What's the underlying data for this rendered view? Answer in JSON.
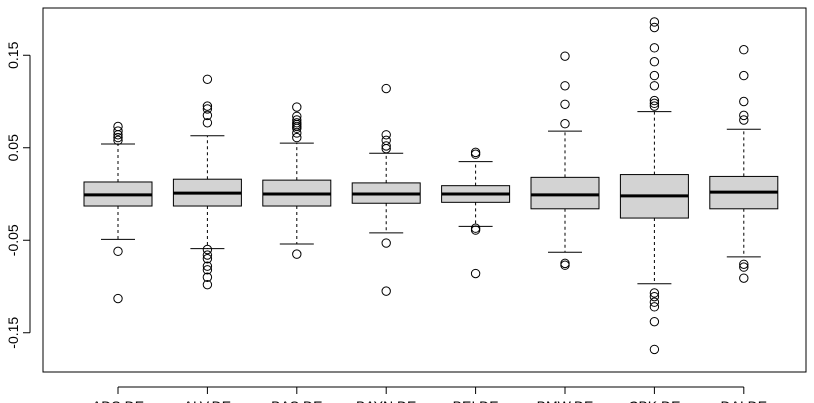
{
  "chart_data": {
    "type": "boxplot",
    "ylim": [
      -0.18,
      0.19
    ],
    "y_ticks": [
      -0.15,
      -0.05,
      0.05,
      0.15
    ],
    "y_tick_labels": [
      "-0.15",
      "-0.05",
      "0.05",
      "0.15"
    ],
    "grid": false,
    "categories": [
      "ADS.DE",
      "ALV.DE",
      "BAS.DE",
      "BAYN.DE",
      "BEI.DE",
      "BMW.DE",
      "CBK.DE",
      "DAI.DE"
    ],
    "boxes": [
      {
        "name": "ADS.DE",
        "whisker_low": -0.049,
        "q1": -0.013,
        "median": -0.001,
        "q3": 0.013,
        "whisker_high": 0.054,
        "outliers": [
          0.073,
          0.068,
          0.064,
          0.061,
          0.058,
          -0.062,
          -0.113
        ]
      },
      {
        "name": "ALV.DE",
        "whisker_low": -0.059,
        "q1": -0.013,
        "median": 0.001,
        "q3": 0.016,
        "whisker_high": 0.063,
        "outliers": [
          0.124,
          0.095,
          0.092,
          0.085,
          0.077,
          -0.06,
          -0.066,
          -0.07,
          -0.078,
          -0.082,
          -0.09,
          -0.098
        ]
      },
      {
        "name": "BAS.DE",
        "whisker_low": -0.054,
        "q1": -0.013,
        "median": 0.0,
        "q3": 0.015,
        "whisker_high": 0.055,
        "outliers": [
          0.094,
          0.084,
          0.08,
          0.077,
          0.075,
          0.073,
          0.071,
          0.066,
          0.061,
          -0.065
        ]
      },
      {
        "name": "BAYN.DE",
        "whisker_low": -0.042,
        "q1": -0.01,
        "median": 0.0,
        "q3": 0.012,
        "whisker_high": 0.044,
        "outliers": [
          0.114,
          0.064,
          0.058,
          0.052,
          0.049,
          -0.053,
          -0.105
        ]
      },
      {
        "name": "BEI.DE",
        "whisker_low": -0.035,
        "q1": -0.009,
        "median": 0.0,
        "q3": 0.009,
        "whisker_high": 0.035,
        "outliers": [
          0.045,
          0.043,
          -0.037,
          -0.039,
          -0.086
        ]
      },
      {
        "name": "BMW.DE",
        "whisker_low": -0.063,
        "q1": -0.016,
        "median": -0.001,
        "q3": 0.018,
        "whisker_high": 0.068,
        "outliers": [
          0.149,
          0.117,
          0.097,
          0.076,
          -0.075,
          -0.077
        ]
      },
      {
        "name": "CBK.DE",
        "whisker_low": -0.097,
        "q1": -0.026,
        "median": -0.002,
        "q3": 0.021,
        "whisker_high": 0.089,
        "outliers": [
          0.186,
          0.18,
          0.158,
          0.143,
          0.128,
          0.117,
          0.101,
          0.098,
          0.095,
          -0.107,
          -0.111,
          -0.117,
          -0.122,
          -0.138,
          -0.168
        ]
      },
      {
        "name": "DAI.DE",
        "whisker_low": -0.068,
        "q1": -0.016,
        "median": 0.002,
        "q3": 0.019,
        "whisker_high": 0.07,
        "outliers": [
          0.156,
          0.128,
          0.1,
          0.085,
          0.08,
          -0.076,
          -0.079,
          -0.091
        ]
      }
    ]
  }
}
